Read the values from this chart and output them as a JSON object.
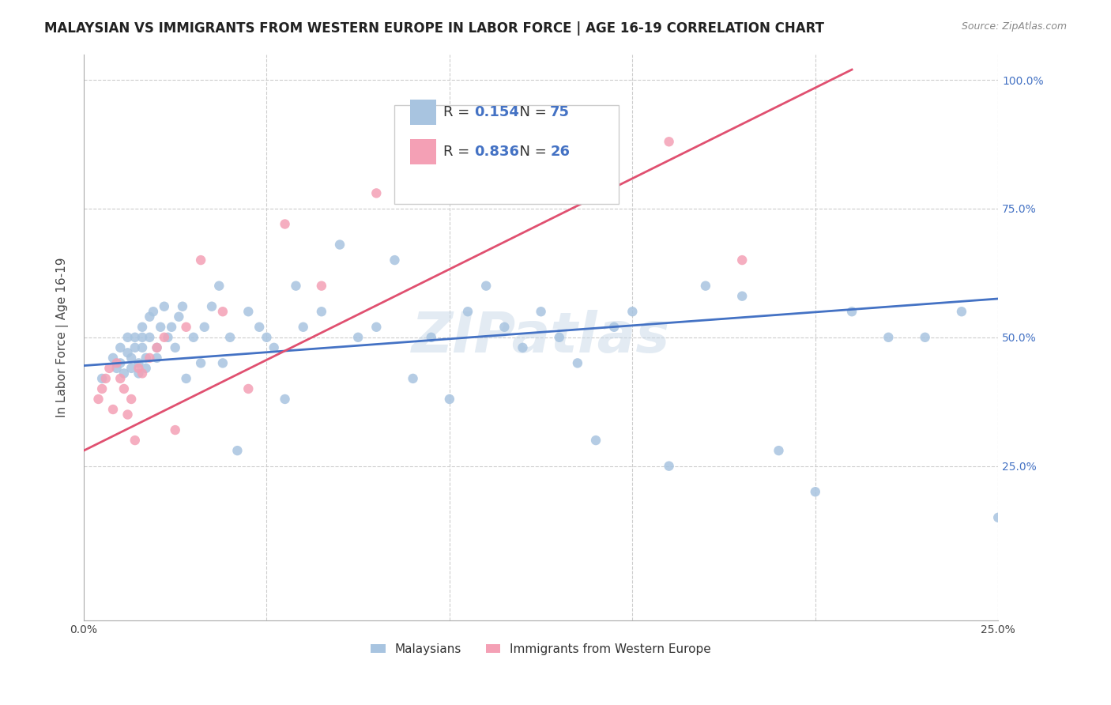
{
  "title": "MALAYSIAN VS IMMIGRANTS FROM WESTERN EUROPE IN LABOR FORCE | AGE 16-19 CORRELATION CHART",
  "source": "Source: ZipAtlas.com",
  "xlabel": "",
  "ylabel": "In Labor Force | Age 16-19",
  "xlim": [
    0.0,
    0.25
  ],
  "ylim": [
    -0.05,
    1.05
  ],
  "legend_items": [
    {
      "label": "Malaysians",
      "color": "#a8c4e0",
      "R": "0.154",
      "N": "75"
    },
    {
      "label": "Immigrants from Western Europe",
      "color": "#f4a0b5",
      "R": "0.836",
      "N": "26"
    }
  ],
  "blue_scatter_x": [
    0.005,
    0.008,
    0.009,
    0.01,
    0.01,
    0.011,
    0.012,
    0.012,
    0.013,
    0.013,
    0.014,
    0.014,
    0.015,
    0.015,
    0.016,
    0.016,
    0.016,
    0.017,
    0.017,
    0.018,
    0.018,
    0.019,
    0.02,
    0.02,
    0.021,
    0.022,
    0.023,
    0.024,
    0.025,
    0.026,
    0.027,
    0.028,
    0.03,
    0.032,
    0.033,
    0.035,
    0.037,
    0.038,
    0.04,
    0.042,
    0.045,
    0.048,
    0.05,
    0.052,
    0.055,
    0.058,
    0.06,
    0.065,
    0.07,
    0.075,
    0.08,
    0.085,
    0.09,
    0.095,
    0.1,
    0.105,
    0.11,
    0.115,
    0.12,
    0.125,
    0.13,
    0.135,
    0.14,
    0.145,
    0.15,
    0.16,
    0.17,
    0.18,
    0.19,
    0.2,
    0.21,
    0.22,
    0.23,
    0.24,
    0.25
  ],
  "blue_scatter_y": [
    0.42,
    0.46,
    0.44,
    0.48,
    0.45,
    0.43,
    0.5,
    0.47,
    0.44,
    0.46,
    0.48,
    0.5,
    0.43,
    0.45,
    0.48,
    0.5,
    0.52,
    0.44,
    0.46,
    0.5,
    0.54,
    0.55,
    0.46,
    0.48,
    0.52,
    0.56,
    0.5,
    0.52,
    0.48,
    0.54,
    0.56,
    0.42,
    0.5,
    0.45,
    0.52,
    0.56,
    0.6,
    0.45,
    0.5,
    0.28,
    0.55,
    0.52,
    0.5,
    0.48,
    0.38,
    0.6,
    0.52,
    0.55,
    0.68,
    0.5,
    0.52,
    0.65,
    0.42,
    0.5,
    0.38,
    0.55,
    0.6,
    0.52,
    0.48,
    0.55,
    0.5,
    0.45,
    0.3,
    0.52,
    0.55,
    0.25,
    0.6,
    0.58,
    0.28,
    0.2,
    0.55,
    0.5,
    0.5,
    0.55,
    0.15
  ],
  "pink_scatter_x": [
    0.004,
    0.005,
    0.006,
    0.007,
    0.008,
    0.009,
    0.01,
    0.011,
    0.012,
    0.013,
    0.014,
    0.015,
    0.016,
    0.018,
    0.02,
    0.022,
    0.025,
    0.028,
    0.032,
    0.038,
    0.045,
    0.055,
    0.065,
    0.08,
    0.16,
    0.18
  ],
  "pink_scatter_y": [
    0.38,
    0.4,
    0.42,
    0.44,
    0.36,
    0.45,
    0.42,
    0.4,
    0.35,
    0.38,
    0.3,
    0.44,
    0.43,
    0.46,
    0.48,
    0.5,
    0.32,
    0.52,
    0.65,
    0.55,
    0.4,
    0.72,
    0.6,
    0.78,
    0.88,
    0.65
  ],
  "blue_line_x": [
    0.0,
    0.25
  ],
  "blue_line_y": [
    0.445,
    0.575
  ],
  "pink_line_x": [
    0.0,
    0.21
  ],
  "pink_line_y": [
    0.28,
    1.02
  ],
  "marker_size": 80,
  "blue_color": "#a8c4e0",
  "blue_line_color": "#4472c4",
  "pink_color": "#f4a0b5",
  "pink_line_color": "#e05070",
  "grid_color": "#cccccc",
  "background_color": "#ffffff",
  "watermark": "ZIPatlas",
  "title_fontsize": 12,
  "axis_label_fontsize": 11,
  "tick_fontsize": 10,
  "r_n_color": "#4472c4"
}
